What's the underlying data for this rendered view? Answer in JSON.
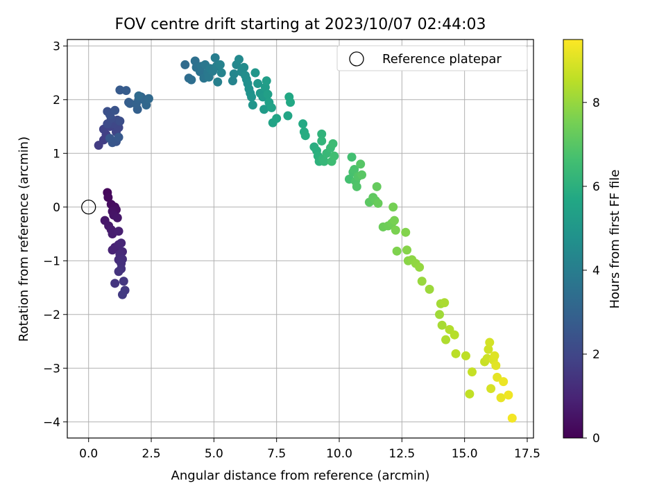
{
  "chart_data": {
    "type": "scatter",
    "title": "FOV centre drift starting at 2023/10/07 02:44:03",
    "xlabel": "Angular distance from reference (arcmin)",
    "ylabel": "Rotation from reference (arcmin)",
    "xlim": [
      -0.85,
      17.75
    ],
    "ylim": [
      -4.3,
      3.12
    ],
    "xticks": [
      0.0,
      2.5,
      5.0,
      7.5,
      10.0,
      12.5,
      15.0,
      17.5
    ],
    "xtick_labels": [
      "0.0",
      "2.5",
      "5.0",
      "7.5",
      "10.0",
      "12.5",
      "15.0",
      "17.5"
    ],
    "yticks": [
      -4,
      -3,
      -2,
      -1,
      0,
      1,
      2,
      3
    ],
    "ytick_labels": [
      "−4",
      "−3",
      "−2",
      "−1",
      "0",
      "1",
      "2",
      "3"
    ],
    "grid": true,
    "legend": {
      "position": "top-right",
      "entries": [
        {
          "label": "Reference platepar",
          "marker": "open-circle",
          "x": 0.0,
          "y": 0.0
        }
      ]
    },
    "colorbar": {
      "label": "Hours from first FF file",
      "colormap": "viridis",
      "range": [
        0,
        9.5
      ],
      "ticks": [
        0,
        2,
        4,
        6,
        8
      ],
      "tick_labels": [
        "0",
        "2",
        "4",
        "6",
        "8"
      ]
    },
    "series": [
      {
        "points": [
          [
            0.75,
            0.27
          ],
          [
            0.78,
            0.18
          ],
          [
            0.9,
            0.05
          ],
          [
            1.05,
            0.0
          ],
          [
            1.1,
            -0.05
          ],
          [
            0.95,
            -0.08
          ],
          [
            1.0,
            -0.15
          ],
          [
            1.15,
            -0.2
          ],
          [
            0.65,
            -0.25
          ],
          [
            0.8,
            -0.35
          ],
          [
            0.9,
            -0.42
          ],
          [
            0.95,
            -0.5
          ],
          [
            1.2,
            -0.45
          ],
          [
            1.05,
            -0.75
          ],
          [
            0.95,
            -0.8
          ],
          [
            1.2,
            -0.7
          ],
          [
            1.3,
            -0.67
          ],
          [
            1.35,
            -0.83
          ],
          [
            1.25,
            -0.88
          ],
          [
            1.2,
            -0.98
          ],
          [
            1.35,
            -0.97
          ],
          [
            1.3,
            -1.05
          ],
          [
            1.3,
            -1.15
          ],
          [
            1.2,
            -1.2
          ],
          [
            1.05,
            -1.42
          ],
          [
            1.4,
            -1.38
          ],
          [
            1.45,
            -1.55
          ],
          [
            1.35,
            -1.63
          ],
          [
            0.4,
            1.15
          ],
          [
            0.6,
            1.25
          ],
          [
            0.7,
            1.35
          ],
          [
            0.6,
            1.45
          ],
          [
            0.85,
            1.5
          ],
          [
            1.1,
            1.4
          ],
          [
            1.2,
            1.48
          ],
          [
            1.0,
            1.55
          ],
          [
            1.15,
            1.62
          ],
          [
            0.75,
            1.55
          ],
          [
            0.9,
            1.65
          ],
          [
            1.25,
            1.6
          ],
          [
            0.75,
            1.78
          ],
          [
            0.85,
            1.72
          ],
          [
            1.05,
            1.8
          ],
          [
            1.1,
            1.22
          ],
          [
            0.95,
            1.2
          ],
          [
            0.85,
            1.28
          ],
          [
            1.2,
            1.3
          ],
          [
            1.25,
            2.18
          ],
          [
            1.5,
            2.17
          ],
          [
            1.6,
            1.95
          ],
          [
            1.65,
            1.93
          ],
          [
            1.95,
            1.82
          ],
          [
            1.9,
            1.92
          ],
          [
            2.0,
            2.0
          ],
          [
            2.1,
            2.05
          ],
          [
            2.25,
            1.98
          ],
          [
            2.3,
            1.9
          ],
          [
            2.4,
            2.02
          ],
          [
            2.0,
            2.07
          ],
          [
            3.85,
            2.65
          ],
          [
            4.0,
            2.4
          ],
          [
            4.1,
            2.37
          ],
          [
            4.25,
            2.72
          ],
          [
            4.3,
            2.6
          ],
          [
            4.45,
            2.52
          ],
          [
            4.5,
            2.62
          ],
          [
            4.6,
            2.4
          ],
          [
            4.65,
            2.65
          ],
          [
            4.75,
            2.5
          ],
          [
            4.8,
            2.42
          ],
          [
            4.85,
            2.58
          ],
          [
            4.95,
            2.53
          ],
          [
            5.05,
            2.78
          ],
          [
            5.1,
            2.62
          ],
          [
            5.15,
            2.33
          ],
          [
            5.25,
            2.65
          ],
          [
            5.3,
            2.5
          ],
          [
            5.75,
            2.35
          ],
          [
            5.8,
            2.48
          ],
          [
            5.9,
            2.65
          ],
          [
            6.0,
            2.75
          ],
          [
            6.1,
            2.52
          ],
          [
            6.2,
            2.6
          ],
          [
            6.25,
            2.45
          ],
          [
            6.3,
            2.38
          ],
          [
            6.35,
            2.3
          ],
          [
            6.4,
            2.2
          ],
          [
            6.45,
            2.12
          ],
          [
            6.5,
            2.05
          ],
          [
            6.55,
            1.9
          ],
          [
            6.65,
            2.5
          ],
          [
            6.75,
            2.3
          ],
          [
            6.85,
            2.12
          ],
          [
            6.95,
            2.05
          ],
          [
            7.0,
            1.82
          ],
          [
            7.05,
            2.23
          ],
          [
            7.1,
            2.35
          ],
          [
            7.15,
            2.1
          ],
          [
            7.2,
            1.95
          ],
          [
            7.3,
            1.85
          ],
          [
            7.35,
            1.57
          ],
          [
            7.5,
            1.65
          ],
          [
            7.95,
            1.7
          ],
          [
            8.0,
            2.05
          ],
          [
            8.05,
            1.95
          ],
          [
            8.55,
            1.55
          ],
          [
            8.6,
            1.4
          ],
          [
            8.65,
            1.33
          ],
          [
            9.0,
            1.12
          ],
          [
            9.1,
            1.05
          ],
          [
            9.15,
            0.95
          ],
          [
            9.2,
            0.85
          ],
          [
            9.3,
            1.36
          ],
          [
            9.3,
            1.23
          ],
          [
            9.35,
            0.9
          ],
          [
            9.4,
            0.85
          ],
          [
            9.5,
            1.0
          ],
          [
            9.65,
            1.1
          ],
          [
            9.75,
            1.18
          ],
          [
            9.7,
            0.85
          ],
          [
            9.8,
            0.95
          ],
          [
            10.5,
            0.93
          ],
          [
            10.4,
            0.52
          ],
          [
            10.55,
            0.65
          ],
          [
            10.6,
            0.7
          ],
          [
            10.65,
            0.48
          ],
          [
            10.7,
            0.38
          ],
          [
            10.75,
            0.57
          ],
          [
            10.85,
            0.8
          ],
          [
            10.9,
            0.6
          ],
          [
            11.2,
            0.09
          ],
          [
            11.35,
            0.18
          ],
          [
            11.45,
            0.12
          ],
          [
            11.5,
            0.38
          ],
          [
            11.55,
            0.07
          ],
          [
            11.75,
            -0.37
          ],
          [
            11.95,
            -0.35
          ],
          [
            12.1,
            -0.3
          ],
          [
            12.15,
            0.0
          ],
          [
            12.2,
            -0.25
          ],
          [
            12.25,
            -0.43
          ],
          [
            12.3,
            -0.82
          ],
          [
            12.65,
            -0.47
          ],
          [
            12.7,
            -0.8
          ],
          [
            12.75,
            -1.0
          ],
          [
            12.9,
            -0.98
          ],
          [
            13.05,
            -1.05
          ],
          [
            13.2,
            -1.12
          ],
          [
            13.3,
            -1.38
          ],
          [
            13.6,
            -1.53
          ],
          [
            14.0,
            -2.0
          ],
          [
            14.05,
            -1.8
          ],
          [
            14.1,
            -2.2
          ],
          [
            14.2,
            -1.78
          ],
          [
            14.25,
            -2.47
          ],
          [
            14.4,
            -2.28
          ],
          [
            14.6,
            -2.38
          ],
          [
            14.65,
            -2.73
          ],
          [
            15.05,
            -2.77
          ],
          [
            15.2,
            -3.48
          ],
          [
            15.3,
            -3.07
          ],
          [
            15.8,
            -2.88
          ],
          [
            15.9,
            -2.82
          ],
          [
            15.95,
            -2.65
          ],
          [
            16.0,
            -2.52
          ],
          [
            16.05,
            -3.38
          ],
          [
            16.15,
            -2.85
          ],
          [
            16.2,
            -2.77
          ],
          [
            16.25,
            -2.95
          ],
          [
            16.3,
            -3.17
          ],
          [
            16.45,
            -3.55
          ],
          [
            16.55,
            -3.25
          ],
          [
            16.75,
            -3.5
          ],
          [
            16.9,
            -3.93
          ]
        ]
      }
    ]
  }
}
